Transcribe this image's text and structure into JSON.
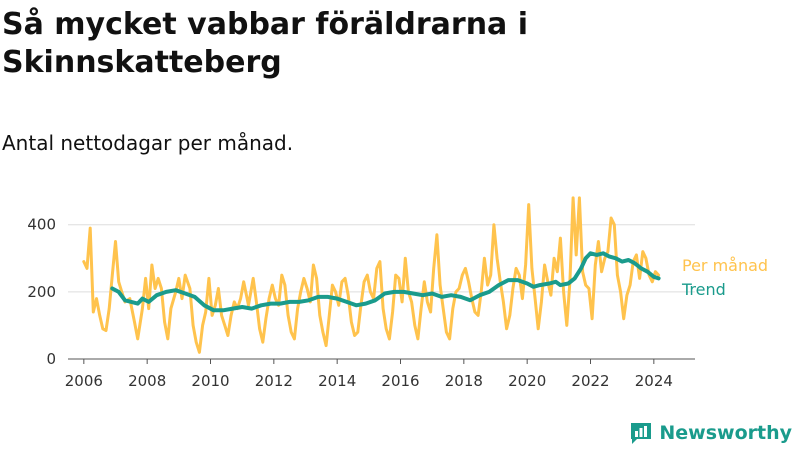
{
  "title": "Så mycket vabbar föräldrarna i Skinnskatteberg",
  "subtitle": "Antal nettodagar per månad.",
  "brand": {
    "name": "Newsworthy"
  },
  "chart_data": {
    "type": "line",
    "title": "Så mycket vabbar föräldrarna i Skinnskatteberg",
    "subtitle": "Antal nettodagar per månad.",
    "xlabel": "",
    "ylabel": "",
    "xlim": [
      2005.5,
      2025.3
    ],
    "ylim": [
      0,
      420
    ],
    "x_ticks": [
      2006,
      2008,
      2010,
      2012,
      2014,
      2016,
      2018,
      2020,
      2022,
      2024
    ],
    "y_ticks": [
      0,
      200,
      400
    ],
    "grid": "horizontal",
    "legend": "right",
    "series": [
      {
        "name": "Per månad",
        "color": "#ffc34d",
        "points": [
          [
            2006.0,
            290
          ],
          [
            2006.1,
            270
          ],
          [
            2006.2,
            390
          ],
          [
            2006.3,
            140
          ],
          [
            2006.4,
            180
          ],
          [
            2006.5,
            130
          ],
          [
            2006.6,
            90
          ],
          [
            2006.7,
            85
          ],
          [
            2006.8,
            150
          ],
          [
            2006.9,
            250
          ],
          [
            2007.0,
            350
          ],
          [
            2007.1,
            230
          ],
          [
            2007.2,
            200
          ],
          [
            2007.3,
            170
          ],
          [
            2007.45,
            180
          ],
          [
            2007.6,
            110
          ],
          [
            2007.7,
            60
          ],
          [
            2007.85,
            150
          ],
          [
            2007.95,
            240
          ],
          [
            2008.05,
            150
          ],
          [
            2008.15,
            280
          ],
          [
            2008.25,
            210
          ],
          [
            2008.35,
            240
          ],
          [
            2008.45,
            210
          ],
          [
            2008.55,
            110
          ],
          [
            2008.65,
            60
          ],
          [
            2008.75,
            150
          ],
          [
            2008.9,
            200
          ],
          [
            2009.0,
            240
          ],
          [
            2009.1,
            180
          ],
          [
            2009.2,
            250
          ],
          [
            2009.35,
            210
          ],
          [
            2009.45,
            100
          ],
          [
            2009.55,
            50
          ],
          [
            2009.65,
            20
          ],
          [
            2009.75,
            100
          ],
          [
            2009.85,
            140
          ],
          [
            2009.95,
            240
          ],
          [
            2010.05,
            130
          ],
          [
            2010.15,
            160
          ],
          [
            2010.25,
            210
          ],
          [
            2010.35,
            130
          ],
          [
            2010.45,
            100
          ],
          [
            2010.55,
            70
          ],
          [
            2010.65,
            130
          ],
          [
            2010.75,
            170
          ],
          [
            2010.85,
            150
          ],
          [
            2010.95,
            180
          ],
          [
            2011.05,
            230
          ],
          [
            2011.2,
            160
          ],
          [
            2011.35,
            240
          ],
          [
            2011.45,
            170
          ],
          [
            2011.55,
            90
          ],
          [
            2011.65,
            50
          ],
          [
            2011.75,
            120
          ],
          [
            2011.85,
            180
          ],
          [
            2011.95,
            220
          ],
          [
            2012.05,
            180
          ],
          [
            2012.15,
            160
          ],
          [
            2012.25,
            250
          ],
          [
            2012.35,
            220
          ],
          [
            2012.45,
            130
          ],
          [
            2012.55,
            80
          ],
          [
            2012.65,
            60
          ],
          [
            2012.75,
            150
          ],
          [
            2012.85,
            200
          ],
          [
            2012.95,
            240
          ],
          [
            2013.05,
            210
          ],
          [
            2013.15,
            170
          ],
          [
            2013.25,
            280
          ],
          [
            2013.35,
            240
          ],
          [
            2013.45,
            130
          ],
          [
            2013.55,
            80
          ],
          [
            2013.65,
            40
          ],
          [
            2013.75,
            130
          ],
          [
            2013.85,
            220
          ],
          [
            2013.95,
            200
          ],
          [
            2014.05,
            160
          ],
          [
            2014.15,
            230
          ],
          [
            2014.25,
            240
          ],
          [
            2014.35,
            190
          ],
          [
            2014.45,
            110
          ],
          [
            2014.55,
            70
          ],
          [
            2014.65,
            80
          ],
          [
            2014.75,
            160
          ],
          [
            2014.85,
            230
          ],
          [
            2014.95,
            250
          ],
          [
            2015.05,
            200
          ],
          [
            2015.15,
            180
          ],
          [
            2015.25,
            270
          ],
          [
            2015.35,
            290
          ],
          [
            2015.45,
            150
          ],
          [
            2015.55,
            90
          ],
          [
            2015.65,
            60
          ],
          [
            2015.75,
            140
          ],
          [
            2015.85,
            250
          ],
          [
            2015.95,
            240
          ],
          [
            2016.05,
            170
          ],
          [
            2016.15,
            300
          ],
          [
            2016.25,
            200
          ],
          [
            2016.35,
            170
          ],
          [
            2016.45,
            100
          ],
          [
            2016.55,
            60
          ],
          [
            2016.65,
            150
          ],
          [
            2016.75,
            230
          ],
          [
            2016.85,
            170
          ],
          [
            2016.95,
            140
          ],
          [
            2017.05,
            270
          ],
          [
            2017.15,
            370
          ],
          [
            2017.25,
            220
          ],
          [
            2017.35,
            150
          ],
          [
            2017.45,
            80
          ],
          [
            2017.55,
            60
          ],
          [
            2017.65,
            150
          ],
          [
            2017.75,
            200
          ],
          [
            2017.85,
            210
          ],
          [
            2017.95,
            250
          ],
          [
            2018.05,
            270
          ],
          [
            2018.15,
            230
          ],
          [
            2018.25,
            180
          ],
          [
            2018.35,
            140
          ],
          [
            2018.45,
            130
          ],
          [
            2018.55,
            200
          ],
          [
            2018.65,
            300
          ],
          [
            2018.75,
            220
          ],
          [
            2018.85,
            250
          ],
          [
            2018.95,
            400
          ],
          [
            2019.05,
            300
          ],
          [
            2019.15,
            230
          ],
          [
            2019.25,
            170
          ],
          [
            2019.35,
            90
          ],
          [
            2019.45,
            130
          ],
          [
            2019.55,
            210
          ],
          [
            2019.65,
            270
          ],
          [
            2019.75,
            250
          ],
          [
            2019.85,
            180
          ],
          [
            2019.95,
            280
          ],
          [
            2020.05,
            460
          ],
          [
            2020.15,
            270
          ],
          [
            2020.25,
            180
          ],
          [
            2020.35,
            90
          ],
          [
            2020.45,
            170
          ],
          [
            2020.55,
            280
          ],
          [
            2020.65,
            230
          ],
          [
            2020.75,
            190
          ],
          [
            2020.85,
            300
          ],
          [
            2020.95,
            260
          ],
          [
            2021.05,
            360
          ],
          [
            2021.15,
            200
          ],
          [
            2021.25,
            100
          ],
          [
            2021.35,
            230
          ],
          [
            2021.45,
            480
          ],
          [
            2021.55,
            310
          ],
          [
            2021.65,
            480
          ],
          [
            2021.75,
            260
          ],
          [
            2021.85,
            220
          ],
          [
            2021.95,
            210
          ],
          [
            2022.05,
            120
          ],
          [
            2022.15,
            280
          ],
          [
            2022.25,
            350
          ],
          [
            2022.35,
            260
          ],
          [
            2022.45,
            300
          ],
          [
            2022.55,
            320
          ],
          [
            2022.65,
            420
          ],
          [
            2022.75,
            400
          ],
          [
            2022.85,
            250
          ],
          [
            2022.95,
            200
          ],
          [
            2023.05,
            120
          ],
          [
            2023.15,
            190
          ],
          [
            2023.25,
            220
          ],
          [
            2023.35,
            290
          ],
          [
            2023.45,
            310
          ],
          [
            2023.55,
            240
          ],
          [
            2023.65,
            320
          ],
          [
            2023.75,
            300
          ],
          [
            2023.85,
            250
          ],
          [
            2023.95,
            230
          ],
          [
            2024.05,
            260
          ],
          [
            2024.15,
            250
          ]
        ]
      },
      {
        "name": "Trend",
        "color": "#1a9b8c",
        "points": [
          [
            2006.9,
            210
          ],
          [
            2007.1,
            200
          ],
          [
            2007.3,
            175
          ],
          [
            2007.5,
            170
          ],
          [
            2007.7,
            165
          ],
          [
            2007.85,
            180
          ],
          [
            2008.05,
            170
          ],
          [
            2008.3,
            190
          ],
          [
            2008.6,
            200
          ],
          [
            2008.9,
            205
          ],
          [
            2009.2,
            195
          ],
          [
            2009.5,
            185
          ],
          [
            2009.8,
            160
          ],
          [
            2010.1,
            145
          ],
          [
            2010.4,
            145
          ],
          [
            2010.7,
            150
          ],
          [
            2011.0,
            155
          ],
          [
            2011.3,
            150
          ],
          [
            2011.6,
            160
          ],
          [
            2011.9,
            165
          ],
          [
            2012.2,
            165
          ],
          [
            2012.5,
            170
          ],
          [
            2012.8,
            170
          ],
          [
            2013.1,
            175
          ],
          [
            2013.4,
            185
          ],
          [
            2013.7,
            185
          ],
          [
            2014.0,
            180
          ],
          [
            2014.3,
            170
          ],
          [
            2014.6,
            160
          ],
          [
            2014.9,
            165
          ],
          [
            2015.2,
            175
          ],
          [
            2015.5,
            195
          ],
          [
            2015.8,
            200
          ],
          [
            2016.1,
            200
          ],
          [
            2016.4,
            195
          ],
          [
            2016.7,
            190
          ],
          [
            2017.0,
            195
          ],
          [
            2017.3,
            185
          ],
          [
            2017.6,
            190
          ],
          [
            2017.9,
            185
          ],
          [
            2018.2,
            175
          ],
          [
            2018.5,
            190
          ],
          [
            2018.8,
            200
          ],
          [
            2019.1,
            220
          ],
          [
            2019.4,
            235
          ],
          [
            2019.7,
            235
          ],
          [
            2020.0,
            225
          ],
          [
            2020.2,
            215
          ],
          [
            2020.4,
            220
          ],
          [
            2020.7,
            225
          ],
          [
            2020.9,
            230
          ],
          [
            2021.05,
            220
          ],
          [
            2021.3,
            225
          ],
          [
            2021.5,
            240
          ],
          [
            2021.7,
            270
          ],
          [
            2021.85,
            300
          ],
          [
            2022.0,
            315
          ],
          [
            2022.2,
            310
          ],
          [
            2022.4,
            315
          ],
          [
            2022.6,
            305
          ],
          [
            2022.8,
            300
          ],
          [
            2023.0,
            290
          ],
          [
            2023.2,
            295
          ],
          [
            2023.4,
            285
          ],
          [
            2023.6,
            270
          ],
          [
            2023.8,
            260
          ],
          [
            2024.0,
            245
          ],
          [
            2024.15,
            240
          ]
        ]
      }
    ]
  }
}
